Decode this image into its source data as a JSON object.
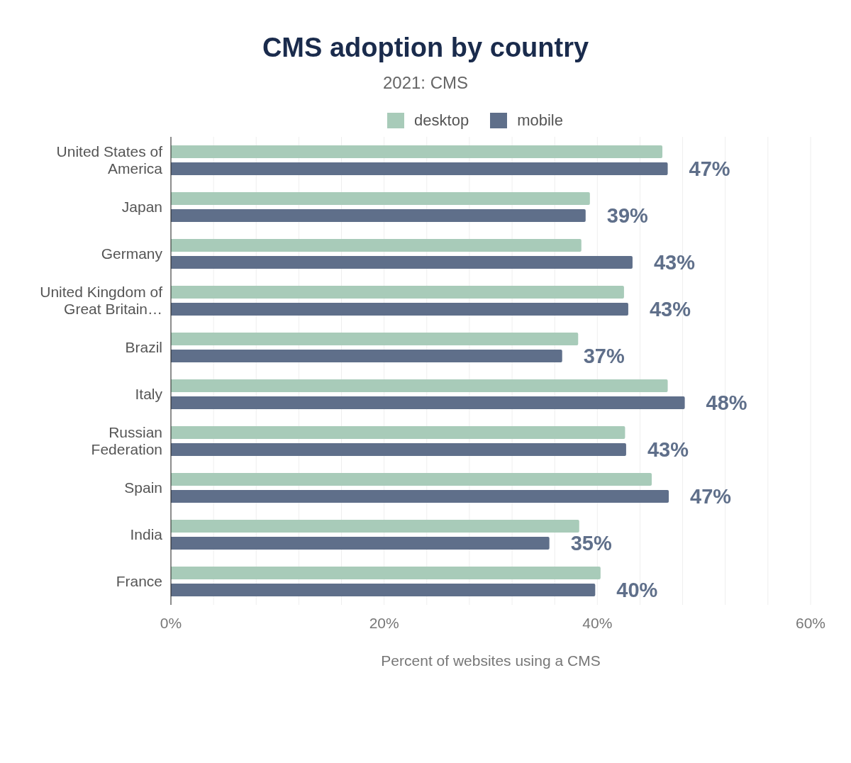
{
  "chart_data": {
    "type": "bar",
    "orientation": "horizontal",
    "title": "CMS adoption by country",
    "subtitle": "2021: CMS",
    "xlabel": "Percent of websites using a CMS",
    "categories": [
      "United States of America",
      "Japan",
      "Germany",
      "United Kingdom of Great Britain…",
      "Brazil",
      "Italy",
      "Russian Federation",
      "Spain",
      "India",
      "France"
    ],
    "series": [
      {
        "name": "desktop",
        "color": "#a8cbb9",
        "values": [
          46.1,
          39.3,
          38.5,
          42.5,
          38.2,
          46.6,
          42.6,
          45.1,
          38.3,
          40.3
        ]
      },
      {
        "name": "mobile",
        "color": "#5f6f8a",
        "values": [
          46.6,
          38.9,
          43.3,
          42.9,
          36.7,
          48.2,
          42.7,
          46.7,
          35.5,
          39.8
        ],
        "value_labels": [
          "47%",
          "39%",
          "43%",
          "43%",
          "37%",
          "48%",
          "43%",
          "47%",
          "35%",
          "40%"
        ]
      }
    ],
    "xlim": [
      0,
      60
    ],
    "xticks": [
      {
        "value": 0,
        "label": "0%"
      },
      {
        "value": 4,
        "label": null
      },
      {
        "value": 8,
        "label": null
      },
      {
        "value": 12,
        "label": null
      },
      {
        "value": 16,
        "label": null
      },
      {
        "value": 20,
        "label": "20%"
      },
      {
        "value": 24,
        "label": null
      },
      {
        "value": 28,
        "label": null
      },
      {
        "value": 32,
        "label": null
      },
      {
        "value": 36,
        "label": null
      },
      {
        "value": 40,
        "label": "40%"
      },
      {
        "value": 44,
        "label": null
      },
      {
        "value": 48,
        "label": null
      },
      {
        "value": 52,
        "label": null
      },
      {
        "value": 56,
        "label": null
      },
      {
        "value": 60,
        "label": "60%"
      }
    ],
    "grid": "x",
    "legend": "top"
  }
}
